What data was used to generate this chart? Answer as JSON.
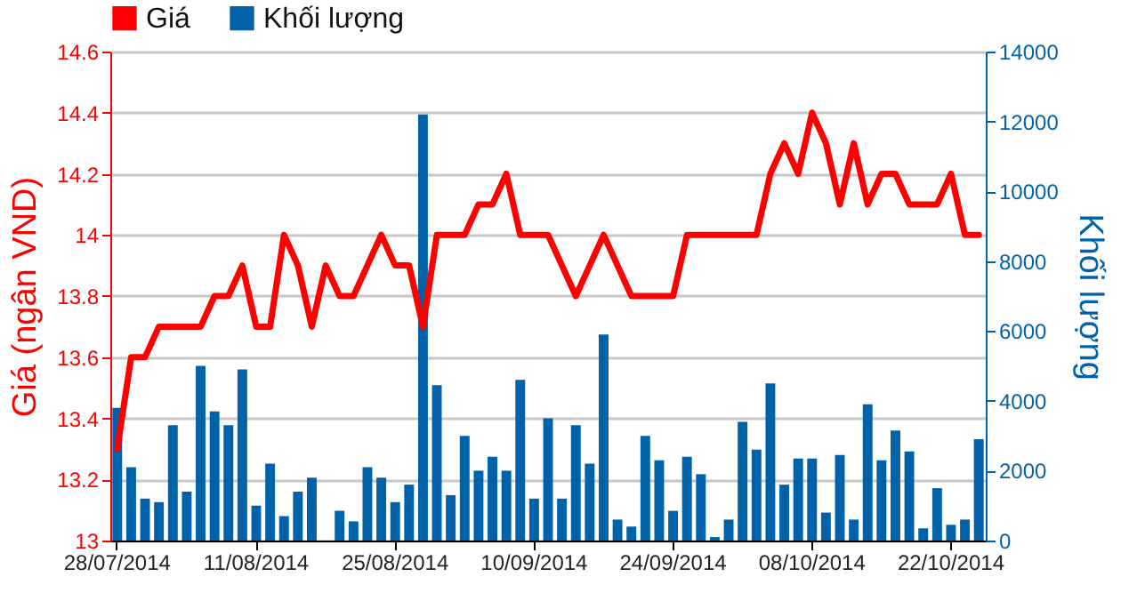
{
  "chart_data": {
    "type": "line",
    "categories": [
      "28/07/2014",
      null,
      null,
      null,
      null,
      null,
      null,
      null,
      null,
      null,
      "11/08/2014",
      null,
      null,
      null,
      null,
      null,
      null,
      null,
      null,
      null,
      "25/08/2014",
      null,
      null,
      null,
      null,
      null,
      null,
      null,
      null,
      null,
      "10/09/2014",
      null,
      null,
      null,
      null,
      null,
      null,
      null,
      null,
      null,
      "24/09/2014",
      null,
      null,
      null,
      null,
      null,
      null,
      null,
      null,
      null,
      "08/10/2014",
      null,
      null,
      null,
      null,
      null,
      null,
      null,
      null,
      null,
      "22/10/2014",
      null,
      null
    ],
    "series": [
      {
        "name": "Giá",
        "type": "line",
        "color": "#ff0000",
        "values": [
          13.3,
          13.6,
          13.6,
          13.7,
          13.7,
          13.7,
          13.7,
          13.8,
          13.8,
          13.9,
          13.7,
          13.7,
          14.0,
          13.9,
          13.7,
          13.9,
          13.8,
          13.8,
          13.9,
          14.0,
          13.9,
          13.9,
          13.7,
          14.0,
          14.0,
          14.0,
          14.1,
          14.1,
          14.2,
          14.0,
          14.0,
          14.0,
          13.9,
          13.8,
          13.9,
          14.0,
          13.9,
          13.8,
          13.8,
          13.8,
          13.8,
          14.0,
          14.0,
          14.0,
          14.0,
          14.0,
          14.0,
          14.2,
          14.3,
          14.2,
          14.4,
          14.3,
          14.1,
          14.3,
          14.1,
          14.2,
          14.2,
          14.1,
          14.1,
          14.1,
          14.2,
          14.0,
          14.0
        ]
      },
      {
        "name": "Khối lượng",
        "type": "bar",
        "axis": "y2",
        "color": "#0062a9",
        "values": [
          3800,
          2100,
          1200,
          1100,
          3300,
          1400,
          5000,
          3700,
          3300,
          4900,
          1000,
          2200,
          700,
          1400,
          1800,
          null,
          850,
          550,
          2100,
          1800,
          1100,
          1600,
          12200,
          4450,
          1300,
          3000,
          2000,
          2400,
          2000,
          4600,
          1200,
          3500,
          1200,
          3300,
          2200,
          5900,
          600,
          400,
          3000,
          2300,
          850,
          2400,
          1900,
          100,
          600,
          3400,
          2600,
          4500,
          1600,
          2350,
          2350,
          800,
          2450,
          600,
          3900,
          2300,
          3150,
          2550,
          350,
          1500,
          450,
          600,
          2900
        ]
      }
    ],
    "ylabel": "Giá (ngân VND)",
    "y2label": "Khối lượng",
    "ylim": [
      13,
      14.6
    ],
    "yticks": [
      13,
      13.2,
      13.4,
      13.6,
      13.8,
      14,
      14.2,
      14.4,
      14.6
    ],
    "y2lim": [
      0,
      14000
    ],
    "y2ticks": [
      0,
      2000,
      4000,
      6000,
      8000,
      10000,
      12000,
      14000
    ],
    "grid": "y",
    "legend": "top left"
  }
}
